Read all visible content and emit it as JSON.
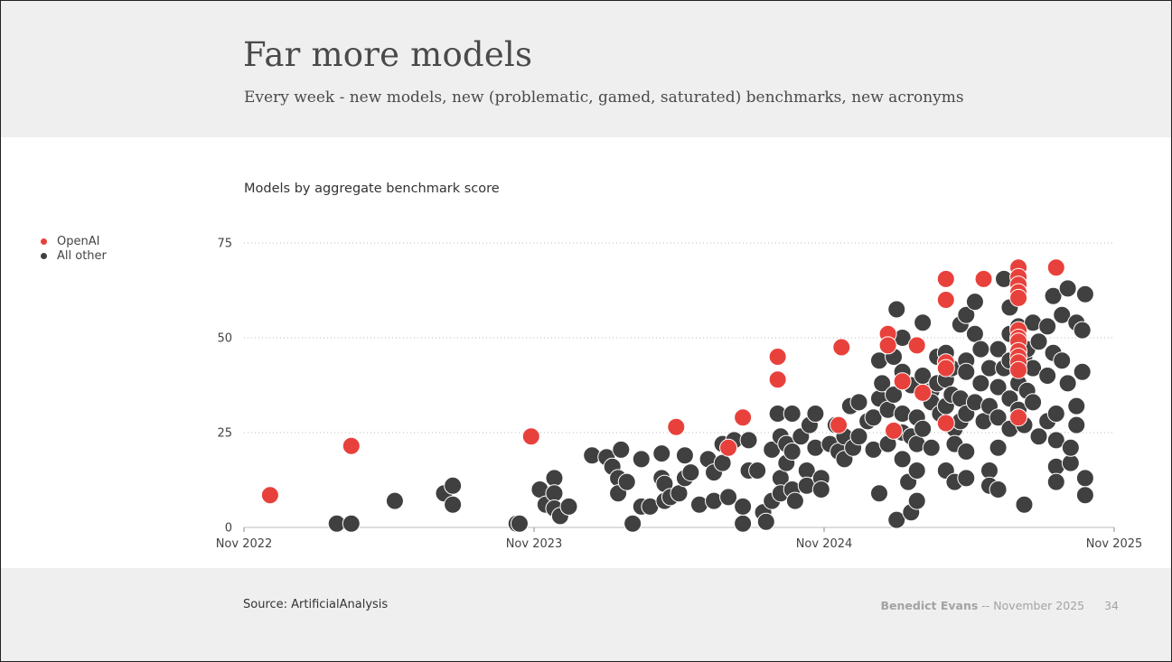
{
  "slide": {
    "title": "Far more models",
    "subtitle": "Every week - new models, new (problematic, gamed, saturated) benchmarks, new acronyms",
    "source": "Source: ArtificialAnalysis",
    "author": "Benedict Evans",
    "separator": "--",
    "date": "November 2025",
    "page_number": "34"
  },
  "colors": {
    "openai": "#e8413c",
    "other": "#404040",
    "header_bg": "#efefef",
    "grid": "#bbbbbb"
  },
  "chart_data": {
    "type": "scatter",
    "title": "Models by aggregate benchmark score",
    "xlabel": "",
    "ylabel": "",
    "x_ticks": [
      "Nov 2022",
      "Nov 2023",
      "Nov 2024",
      "Nov 2025"
    ],
    "x_range": [
      2022.83,
      2025.83
    ],
    "ylim": [
      0,
      75
    ],
    "y_ticks": [
      0,
      25,
      50,
      75
    ],
    "grid": "horizontal dotted",
    "legend": "left",
    "series": [
      {
        "name": "OpenAI",
        "color": "#e8413c",
        "points": [
          [
            2022.92,
            8.5
          ],
          [
            2023.2,
            21.5
          ],
          [
            2023.82,
            24
          ],
          [
            2024.32,
            26.5
          ],
          [
            2024.5,
            21
          ],
          [
            2024.55,
            29
          ],
          [
            2024.67,
            45
          ],
          [
            2024.67,
            39
          ],
          [
            2024.88,
            27
          ],
          [
            2024.89,
            47.5
          ],
          [
            2025.05,
            51
          ],
          [
            2025.05,
            48
          ],
          [
            2025.07,
            25.5
          ],
          [
            2025.1,
            38.5
          ],
          [
            2025.15,
            48
          ],
          [
            2025.17,
            35.5
          ],
          [
            2025.25,
            65.5
          ],
          [
            2025.25,
            60
          ],
          [
            2025.25,
            43.5
          ],
          [
            2025.25,
            42
          ],
          [
            2025.25,
            27.5
          ],
          [
            2025.38,
            65.5
          ],
          [
            2025.5,
            68.5
          ],
          [
            2025.5,
            66
          ],
          [
            2025.5,
            64
          ],
          [
            2025.5,
            62
          ],
          [
            2025.5,
            60.5
          ],
          [
            2025.5,
            52
          ],
          [
            2025.5,
            50
          ],
          [
            2025.5,
            49
          ],
          [
            2025.5,
            46.5
          ],
          [
            2025.5,
            45
          ],
          [
            2025.5,
            43.5
          ],
          [
            2025.5,
            41.5
          ],
          [
            2025.5,
            29
          ],
          [
            2025.63,
            68.5
          ]
        ]
      },
      {
        "name": "All other",
        "color": "#404040",
        "points": [
          [
            2023.15,
            1
          ],
          [
            2023.2,
            1
          ],
          [
            2023.35,
            7
          ],
          [
            2023.52,
            9
          ],
          [
            2023.55,
            11
          ],
          [
            2023.55,
            6
          ],
          [
            2023.77,
            1
          ],
          [
            2023.78,
            1
          ],
          [
            2023.85,
            10
          ],
          [
            2023.87,
            6
          ],
          [
            2023.9,
            13
          ],
          [
            2023.9,
            9
          ],
          [
            2023.9,
            5
          ],
          [
            2023.92,
            3
          ],
          [
            2023.95,
            5.5
          ],
          [
            2024.03,
            19
          ],
          [
            2024.08,
            18.5
          ],
          [
            2024.1,
            16
          ],
          [
            2024.12,
            13
          ],
          [
            2024.12,
            9
          ],
          [
            2024.13,
            20.5
          ],
          [
            2024.15,
            12
          ],
          [
            2024.17,
            1
          ],
          [
            2024.2,
            18
          ],
          [
            2024.2,
            5.5
          ],
          [
            2024.23,
            5.5
          ],
          [
            2024.27,
            19.5
          ],
          [
            2024.27,
            13
          ],
          [
            2024.28,
            11.5
          ],
          [
            2024.28,
            7
          ],
          [
            2024.3,
            8
          ],
          [
            2024.33,
            9
          ],
          [
            2024.35,
            19
          ],
          [
            2024.35,
            13
          ],
          [
            2024.37,
            14.5
          ],
          [
            2024.4,
            6
          ],
          [
            2024.43,
            18
          ],
          [
            2024.45,
            14.5
          ],
          [
            2024.45,
            7
          ],
          [
            2024.48,
            22
          ],
          [
            2024.48,
            17
          ],
          [
            2024.5,
            8
          ],
          [
            2024.52,
            23
          ],
          [
            2024.55,
            1
          ],
          [
            2024.55,
            5.5
          ],
          [
            2024.57,
            23
          ],
          [
            2024.57,
            15
          ],
          [
            2024.6,
            15
          ],
          [
            2024.62,
            4
          ],
          [
            2024.63,
            1.5
          ],
          [
            2024.65,
            20.5
          ],
          [
            2024.65,
            7
          ],
          [
            2024.67,
            30
          ],
          [
            2024.68,
            24
          ],
          [
            2024.68,
            13
          ],
          [
            2024.68,
            9
          ],
          [
            2024.7,
            22
          ],
          [
            2024.7,
            17
          ],
          [
            2024.72,
            30
          ],
          [
            2024.72,
            20
          ],
          [
            2024.72,
            10
          ],
          [
            2024.73,
            7
          ],
          [
            2024.75,
            24
          ],
          [
            2024.77,
            15
          ],
          [
            2024.77,
            11
          ],
          [
            2024.78,
            27
          ],
          [
            2024.8,
            30
          ],
          [
            2024.8,
            21
          ],
          [
            2024.82,
            13
          ],
          [
            2024.82,
            10
          ],
          [
            2024.85,
            22
          ],
          [
            2024.87,
            27
          ],
          [
            2024.88,
            20
          ],
          [
            2024.9,
            24
          ],
          [
            2024.9,
            18
          ],
          [
            2024.92,
            32
          ],
          [
            2024.93,
            21
          ],
          [
            2024.95,
            24
          ],
          [
            2024.95,
            33
          ],
          [
            2024.98,
            28
          ],
          [
            2025.0,
            20.5
          ],
          [
            2025.0,
            29
          ],
          [
            2025.02,
            44
          ],
          [
            2025.02,
            34
          ],
          [
            2025.02,
            9
          ],
          [
            2025.03,
            38
          ],
          [
            2025.05,
            31
          ],
          [
            2025.05,
            22
          ],
          [
            2025.07,
            45
          ],
          [
            2025.07,
            35
          ],
          [
            2025.08,
            2
          ],
          [
            2025.08,
            57.5
          ],
          [
            2025.1,
            50
          ],
          [
            2025.1,
            41
          ],
          [
            2025.1,
            30
          ],
          [
            2025.1,
            25
          ],
          [
            2025.1,
            18
          ],
          [
            2025.12,
            12
          ],
          [
            2025.13,
            37.5
          ],
          [
            2025.13,
            24
          ],
          [
            2025.13,
            4
          ],
          [
            2025.15,
            29
          ],
          [
            2025.15,
            22
          ],
          [
            2025.15,
            15
          ],
          [
            2025.15,
            7
          ],
          [
            2025.17,
            54
          ],
          [
            2025.17,
            40
          ],
          [
            2025.17,
            26
          ],
          [
            2025.2,
            36
          ],
          [
            2025.2,
            33
          ],
          [
            2025.2,
            21
          ],
          [
            2025.22,
            45
          ],
          [
            2025.22,
            38
          ],
          [
            2025.23,
            30
          ],
          [
            2025.25,
            46
          ],
          [
            2025.25,
            39
          ],
          [
            2025.25,
            32
          ],
          [
            2025.25,
            15
          ],
          [
            2025.27,
            42
          ],
          [
            2025.27,
            35
          ],
          [
            2025.28,
            26
          ],
          [
            2025.28,
            22
          ],
          [
            2025.28,
            12
          ],
          [
            2025.3,
            53.5
          ],
          [
            2025.3,
            34
          ],
          [
            2025.3,
            28
          ],
          [
            2025.32,
            56
          ],
          [
            2025.32,
            44
          ],
          [
            2025.32,
            41
          ],
          [
            2025.32,
            30
          ],
          [
            2025.32,
            20
          ],
          [
            2025.32,
            13
          ],
          [
            2025.35,
            59.5
          ],
          [
            2025.35,
            51
          ],
          [
            2025.35,
            33
          ],
          [
            2025.37,
            47
          ],
          [
            2025.37,
            38
          ],
          [
            2025.38,
            28
          ],
          [
            2025.4,
            42
          ],
          [
            2025.4,
            32
          ],
          [
            2025.4,
            15
          ],
          [
            2025.4,
            11
          ],
          [
            2025.43,
            47
          ],
          [
            2025.43,
            37
          ],
          [
            2025.43,
            29
          ],
          [
            2025.43,
            21
          ],
          [
            2025.43,
            10
          ],
          [
            2025.45,
            65.5
          ],
          [
            2025.45,
            42
          ],
          [
            2025.47,
            58
          ],
          [
            2025.47,
            51
          ],
          [
            2025.47,
            44
          ],
          [
            2025.47,
            34
          ],
          [
            2025.47,
            26
          ],
          [
            2025.5,
            53
          ],
          [
            2025.5,
            38
          ],
          [
            2025.5,
            31
          ],
          [
            2025.52,
            45
          ],
          [
            2025.52,
            27
          ],
          [
            2025.52,
            6
          ],
          [
            2025.53,
            47
          ],
          [
            2025.53,
            36
          ],
          [
            2025.55,
            54
          ],
          [
            2025.55,
            42
          ],
          [
            2025.55,
            33
          ],
          [
            2025.57,
            49
          ],
          [
            2025.57,
            24
          ],
          [
            2025.6,
            53
          ],
          [
            2025.6,
            40
          ],
          [
            2025.6,
            28
          ],
          [
            2025.62,
            61
          ],
          [
            2025.62,
            46
          ],
          [
            2025.63,
            16
          ],
          [
            2025.63,
            12
          ],
          [
            2025.63,
            23
          ],
          [
            2025.63,
            30
          ],
          [
            2025.65,
            56
          ],
          [
            2025.65,
            44
          ],
          [
            2025.67,
            63
          ],
          [
            2025.67,
            38
          ],
          [
            2025.68,
            17
          ],
          [
            2025.68,
            21
          ],
          [
            2025.7,
            54
          ],
          [
            2025.7,
            32
          ],
          [
            2025.7,
            27
          ],
          [
            2025.72,
            41
          ],
          [
            2025.72,
            52
          ],
          [
            2025.73,
            61.5
          ],
          [
            2025.73,
            13
          ],
          [
            2025.73,
            8.5
          ]
        ]
      }
    ]
  }
}
